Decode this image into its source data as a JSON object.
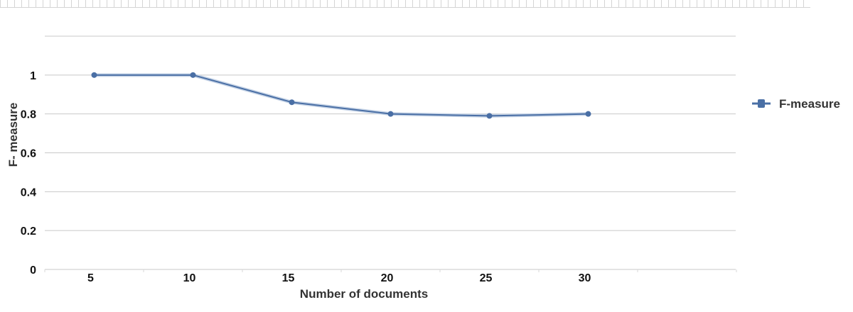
{
  "chart_data": {
    "type": "line",
    "categories": [
      "5",
      "10",
      "15",
      "20",
      "25",
      "30"
    ],
    "series": [
      {
        "name": "F-measure",
        "values": [
          1.0,
          1.0,
          0.86,
          0.8,
          0.79,
          0.8
        ]
      }
    ],
    "xlabel": "Number of documents",
    "ylabel": "F- measure",
    "ylim": [
      0,
      1.2
    ],
    "yticks": [
      "0",
      "0.2",
      "0.4",
      "0.6",
      "0.8",
      "1"
    ],
    "grid": true,
    "legend_position": "right",
    "colors": {
      "series": "#4a6fa5",
      "grid": "#c8c8c8"
    }
  }
}
